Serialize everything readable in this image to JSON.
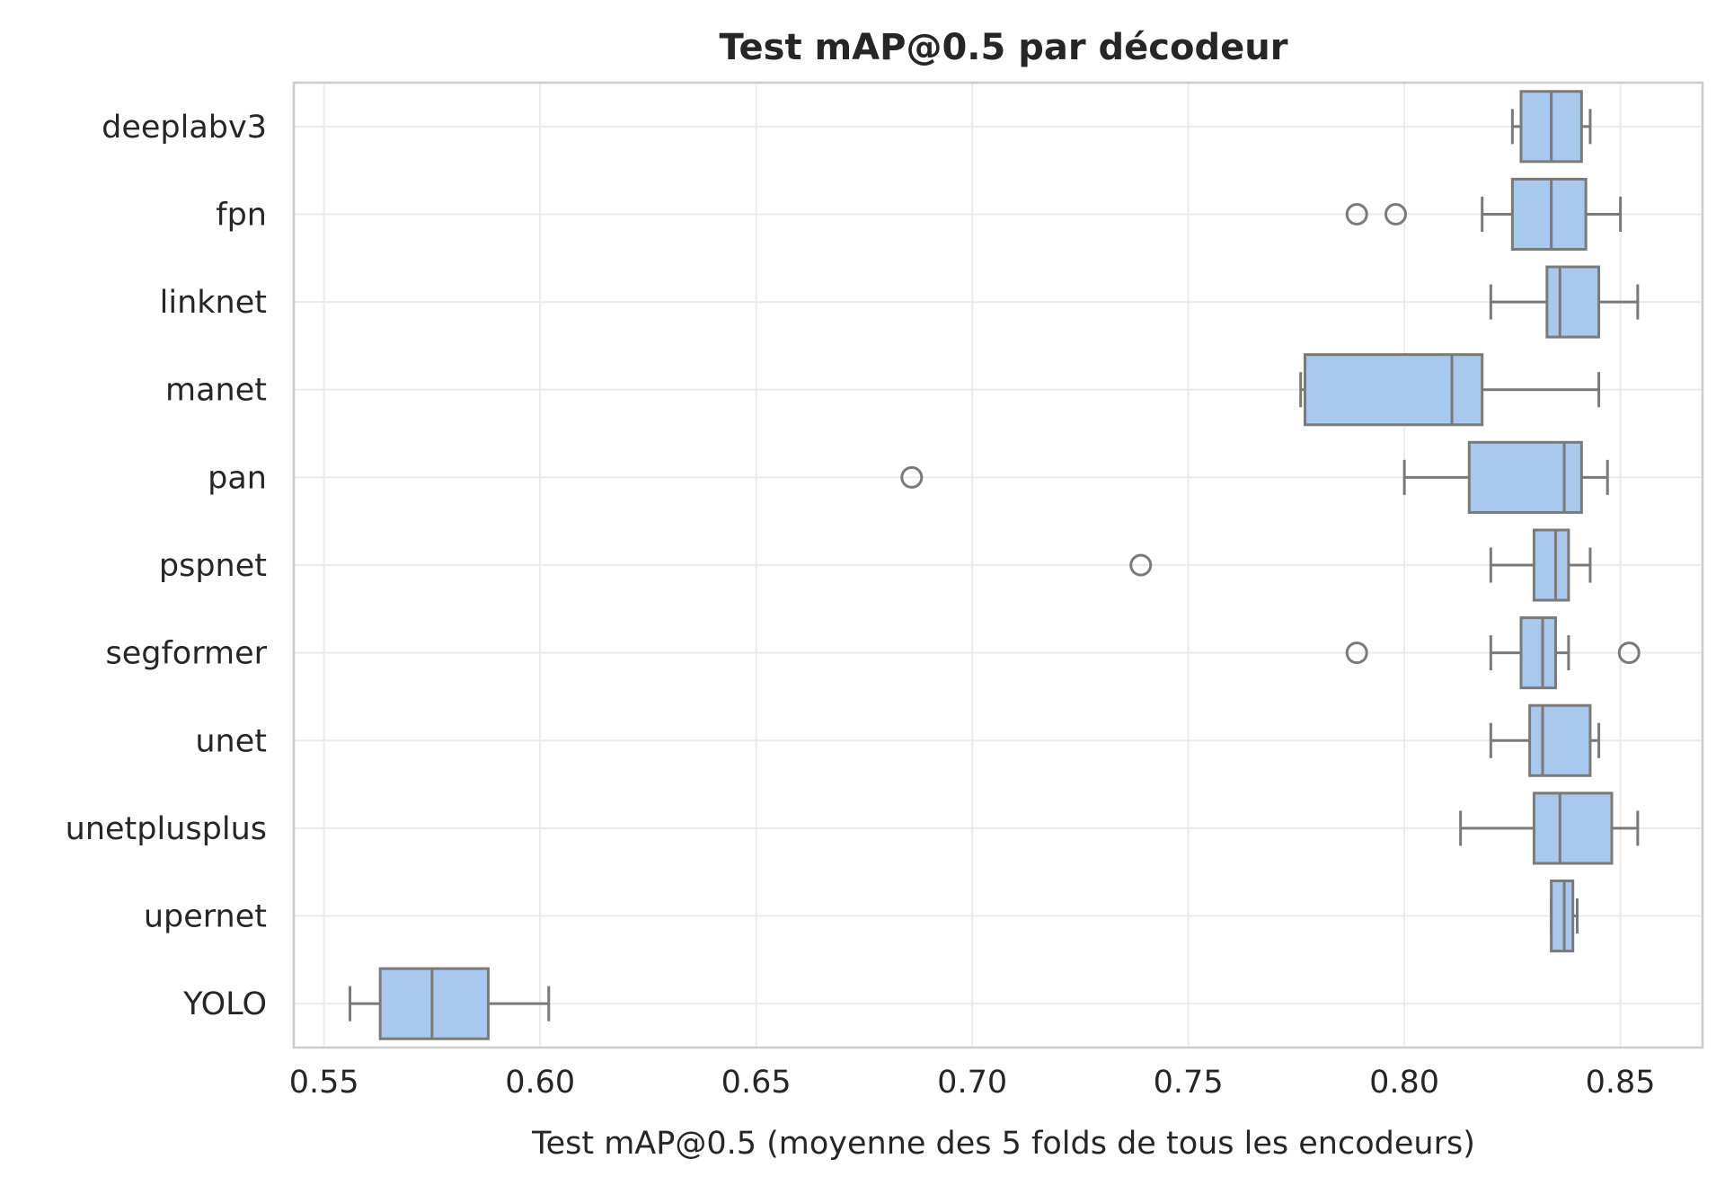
{
  "chart_data": {
    "type": "box",
    "orientation": "horizontal",
    "title": "Test mAP@0.5 par décodeur",
    "xlabel": "Test mAP@0.5 (moyenne des 5 folds de tous les encodeurs)",
    "ylabel": "",
    "xlim": [
      0.543,
      0.869
    ],
    "xticks": [
      0.55,
      0.6,
      0.65,
      0.7,
      0.75,
      0.8,
      0.85
    ],
    "xtick_labels": [
      "0.55",
      "0.60",
      "0.65",
      "0.70",
      "0.75",
      "0.80",
      "0.85"
    ],
    "grid": true,
    "box_color": "#a8c8ee",
    "edge_color": "#7a7a7a",
    "categories": [
      "deeplabv3",
      "fpn",
      "linknet",
      "manet",
      "pan",
      "pspnet",
      "segformer",
      "unet",
      "unetplusplus",
      "upernet",
      "YOLO"
    ],
    "boxes": [
      {
        "label": "deeplabv3",
        "whisker_low": 0.825,
        "q1": 0.827,
        "median": 0.834,
        "q3": 0.841,
        "whisker_high": 0.843,
        "outliers": []
      },
      {
        "label": "fpn",
        "whisker_low": 0.818,
        "q1": 0.825,
        "median": 0.834,
        "q3": 0.842,
        "whisker_high": 0.85,
        "outliers": [
          0.789,
          0.798
        ]
      },
      {
        "label": "linknet",
        "whisker_low": 0.82,
        "q1": 0.833,
        "median": 0.836,
        "q3": 0.845,
        "whisker_high": 0.854,
        "outliers": []
      },
      {
        "label": "manet",
        "whisker_low": 0.776,
        "q1": 0.777,
        "median": 0.811,
        "q3": 0.818,
        "whisker_high": 0.845,
        "outliers": []
      },
      {
        "label": "pan",
        "whisker_low": 0.8,
        "q1": 0.815,
        "median": 0.837,
        "q3": 0.841,
        "whisker_high": 0.847,
        "outliers": [
          0.686
        ]
      },
      {
        "label": "pspnet",
        "whisker_low": 0.82,
        "q1": 0.83,
        "median": 0.835,
        "q3": 0.838,
        "whisker_high": 0.843,
        "outliers": [
          0.739
        ]
      },
      {
        "label": "segformer",
        "whisker_low": 0.82,
        "q1": 0.827,
        "median": 0.832,
        "q3": 0.835,
        "whisker_high": 0.838,
        "outliers": [
          0.789,
          0.852
        ]
      },
      {
        "label": "unet",
        "whisker_low": 0.82,
        "q1": 0.829,
        "median": 0.832,
        "q3": 0.843,
        "whisker_high": 0.845,
        "outliers": []
      },
      {
        "label": "unetplusplus",
        "whisker_low": 0.813,
        "q1": 0.83,
        "median": 0.836,
        "q3": 0.848,
        "whisker_high": 0.854,
        "outliers": []
      },
      {
        "label": "upernet",
        "whisker_low": 0.834,
        "q1": 0.834,
        "median": 0.837,
        "q3": 0.839,
        "whisker_high": 0.84,
        "outliers": []
      },
      {
        "label": "YOLO",
        "whisker_low": 0.556,
        "q1": 0.563,
        "median": 0.575,
        "q3": 0.588,
        "whisker_high": 0.602,
        "outliers": []
      }
    ]
  }
}
